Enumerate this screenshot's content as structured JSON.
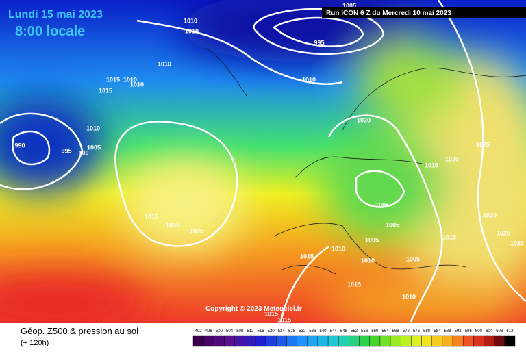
{
  "header": {
    "date": "Lundi 15 mai 2023",
    "time": "8:00 locale",
    "run": "Run ICON 6 Z du Mercredi 10 mai 2023"
  },
  "copyright": "Copyright © 2023 Meteociel.fr",
  "footer": {
    "title": "Géop. Z500 & pression au sol",
    "lead": "(+ 120h)"
  },
  "scale": [
    492,
    496,
    500,
    504,
    508,
    512,
    516,
    520,
    524,
    528,
    532,
    536,
    540,
    544,
    548,
    552,
    556,
    560,
    564,
    568,
    572,
    576,
    580,
    584,
    588,
    592,
    596,
    600,
    604,
    608,
    612
  ],
  "isobar_labels": [
    "1005",
    "1010",
    "1010",
    "995",
    "1010",
    "1010",
    "1015",
    "1010",
    "1010",
    "1015",
    "1020",
    "1010",
    "990",
    "995",
    "100",
    "1005",
    "1025",
    "1020",
    "1015",
    "1005",
    "1015",
    "1020",
    "1025",
    "1020",
    "1005",
    "1020",
    "1015",
    "1005",
    "1010",
    "1015",
    "1010",
    "1005",
    "1015",
    "1010",
    "1015",
    "1015",
    "1020"
  ]
}
